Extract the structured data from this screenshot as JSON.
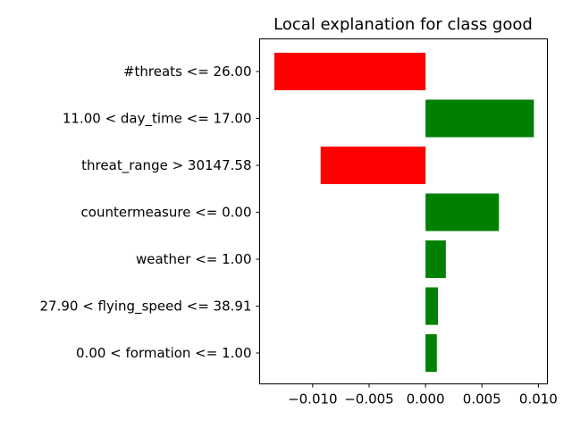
{
  "chart_data": {
    "type": "bar",
    "orientation": "horizontal",
    "title": "Local explanation for class good",
    "xlabel": "",
    "ylabel": "",
    "categories": [
      "#threats <= 26.00",
      "11.00 < day_time <= 17.00",
      "threat_range > 30147.58",
      "countermeasure <= 0.00",
      "weather <= 1.00",
      "27.90 < flying_speed <= 38.91",
      "0.00 < formation <= 1.00"
    ],
    "values": [
      -0.0134,
      0.0096,
      -0.0093,
      0.0065,
      0.0018,
      0.0011,
      0.001
    ],
    "xlim": [
      -0.0147,
      0.0108
    ],
    "xticks": [
      -0.01,
      -0.005,
      0.0,
      0.005,
      0.01
    ],
    "xtick_labels": [
      "−0.010",
      "−0.005",
      "0.000",
      "0.005",
      "0.010"
    ],
    "colors": {
      "positive": "#008000",
      "negative": "#ff0000"
    },
    "grid": false,
    "legend": "none"
  }
}
